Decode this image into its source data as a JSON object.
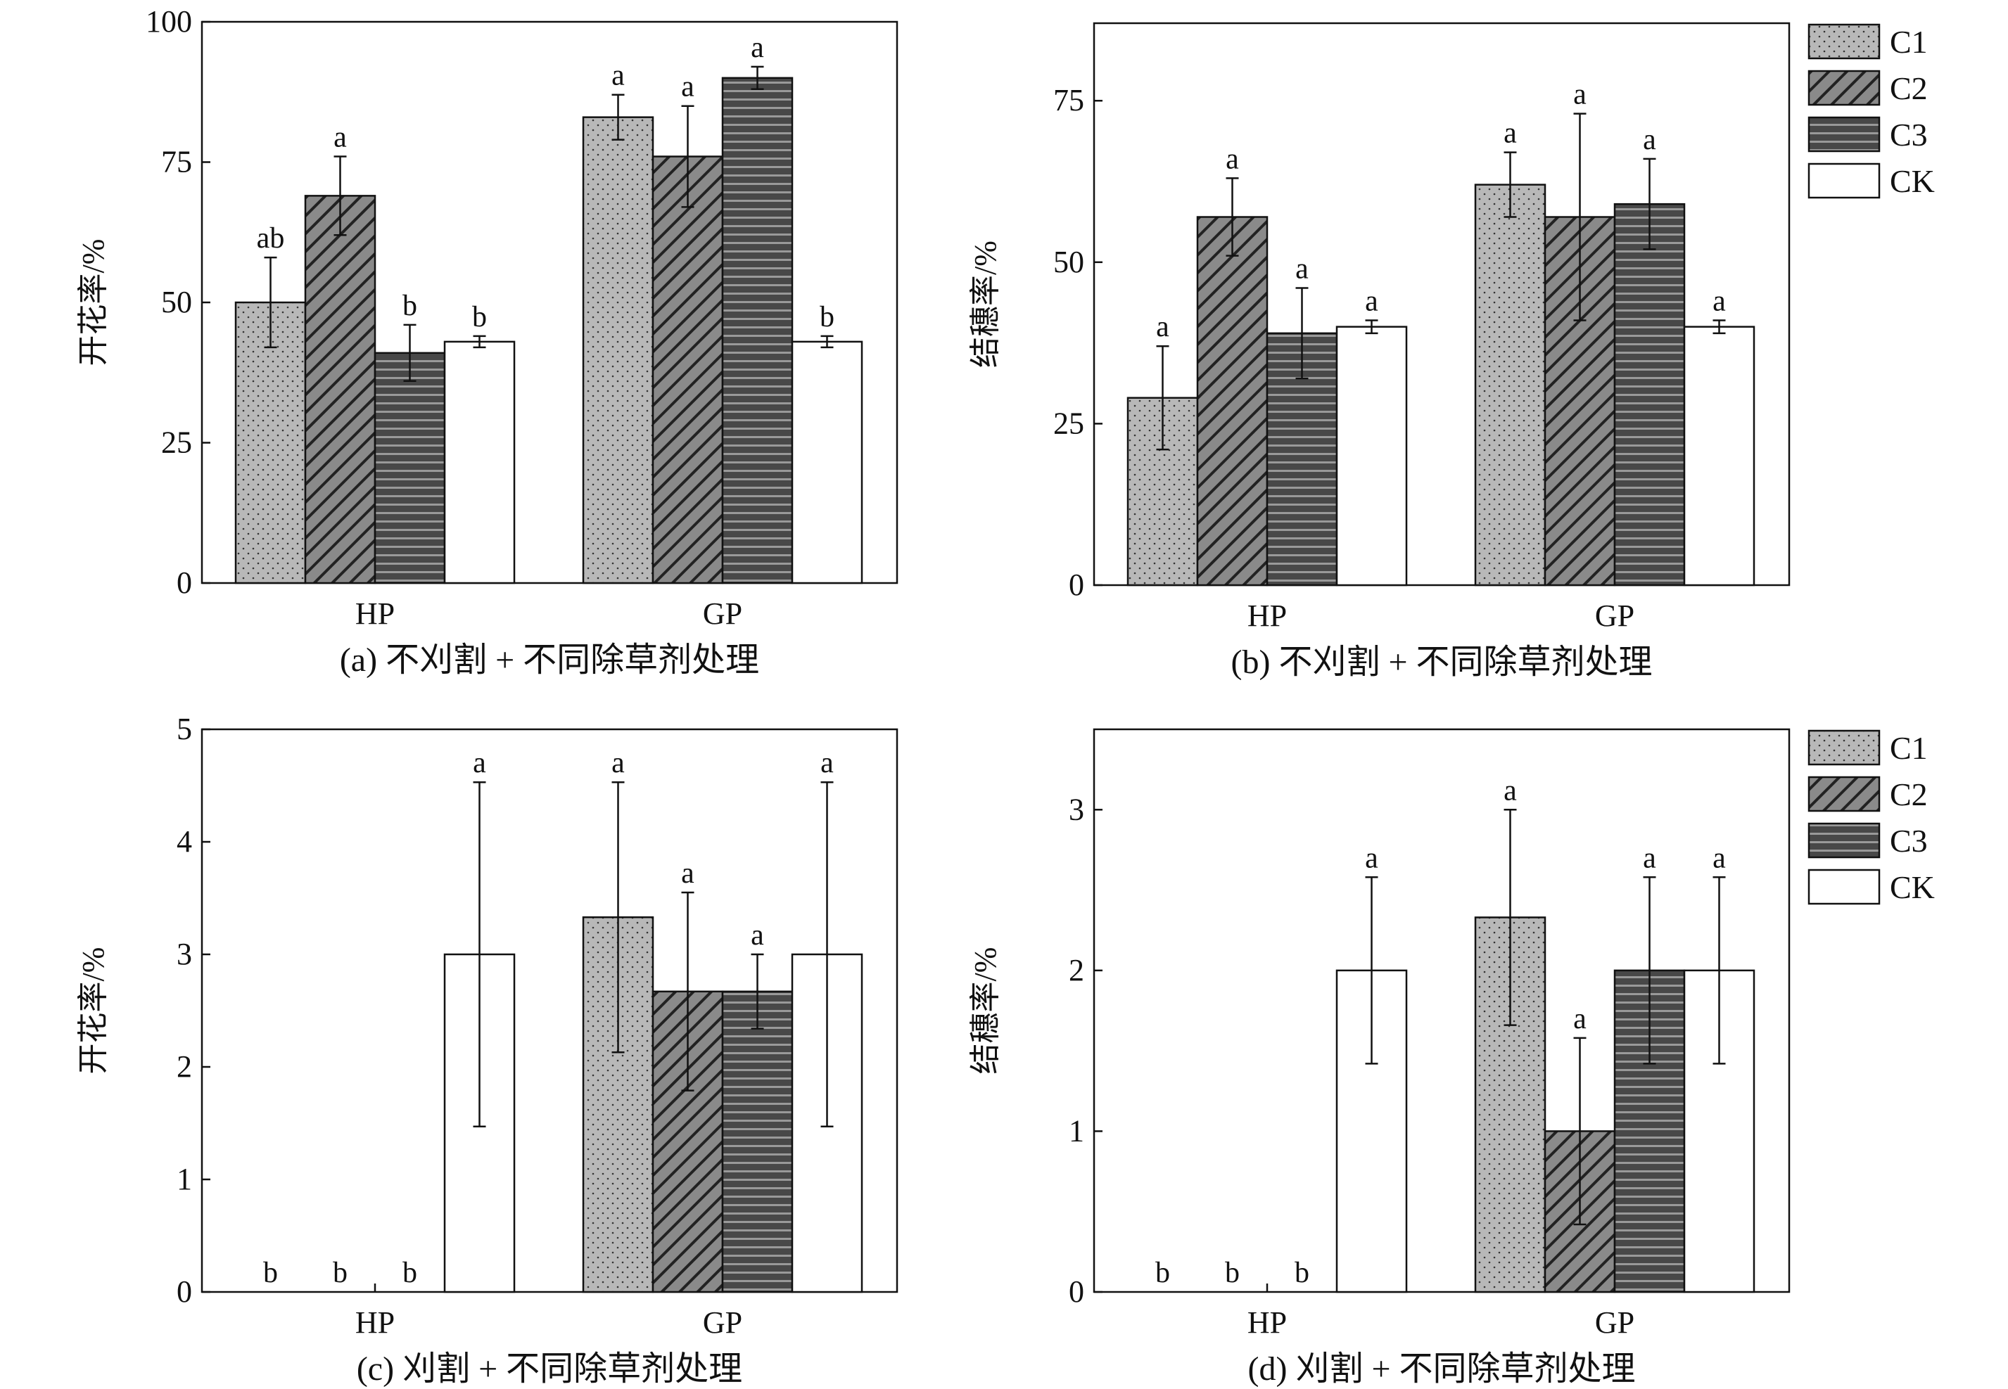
{
  "legend": [
    "C1",
    "C2",
    "C3",
    "CK"
  ],
  "colors": {
    "C1": "#b8b8b8",
    "C2": "#8a8a8a",
    "C3": "#484848",
    "CK": "#ffffff"
  },
  "chart_data": [
    {
      "type": "bar",
      "title": "(a) 不刈割 + 不同除草剂处理",
      "ylabel": "开花率/%",
      "xlabel": "",
      "categories": [
        "HP",
        "GP"
      ],
      "ylim": [
        0,
        100
      ],
      "yticks": [
        0,
        25,
        50,
        75,
        100
      ],
      "legend": false,
      "series": [
        {
          "name": "C1",
          "values": [
            50,
            83
          ],
          "errors": [
            8,
            4
          ],
          "letters": [
            "ab",
            "a"
          ]
        },
        {
          "name": "C2",
          "values": [
            69,
            76
          ],
          "errors": [
            7,
            9
          ],
          "letters": [
            "a",
            "a"
          ]
        },
        {
          "name": "C3",
          "values": [
            41,
            90
          ],
          "errors": [
            5,
            2
          ],
          "letters": [
            "b",
            "a"
          ]
        },
        {
          "name": "CK",
          "values": [
            43,
            43
          ],
          "errors": [
            1,
            1
          ],
          "letters": [
            "b",
            "b"
          ]
        }
      ]
    },
    {
      "type": "bar",
      "title": "(b) 不刈割 + 不同除草剂处理",
      "ylabel": "结穗率/%",
      "xlabel": "",
      "categories": [
        "HP",
        "GP"
      ],
      "ylim": [
        0,
        87
      ],
      "yticks": [
        0,
        25,
        50,
        75
      ],
      "legend": "right",
      "series": [
        {
          "name": "C1",
          "values": [
            29,
            62
          ],
          "errors": [
            8,
            5
          ],
          "letters": [
            "a",
            "a"
          ]
        },
        {
          "name": "C2",
          "values": [
            57,
            57
          ],
          "errors": [
            6,
            16
          ],
          "letters": [
            "a",
            "a"
          ]
        },
        {
          "name": "C3",
          "values": [
            39,
            59
          ],
          "errors": [
            7,
            7
          ],
          "letters": [
            "a",
            "a"
          ]
        },
        {
          "name": "CK",
          "values": [
            40,
            40
          ],
          "errors": [
            1,
            1
          ],
          "letters": [
            "a",
            "a"
          ]
        }
      ]
    },
    {
      "type": "bar",
      "title": "(c) 刈割 + 不同除草剂处理",
      "ylabel": "开花率/%",
      "xlabel": "",
      "categories": [
        "HP",
        "GP"
      ],
      "ylim": [
        0,
        5
      ],
      "yticks": [
        0,
        1,
        2,
        3,
        4,
        5
      ],
      "legend": false,
      "series": [
        {
          "name": "C1",
          "values": [
            0,
            3.33
          ],
          "errors": [
            0,
            1.2
          ],
          "letters": [
            "b",
            "a"
          ]
        },
        {
          "name": "C2",
          "values": [
            0,
            2.67
          ],
          "errors": [
            0,
            0.88
          ],
          "letters": [
            "b",
            "a"
          ]
        },
        {
          "name": "C3",
          "values": [
            0,
            2.67
          ],
          "errors": [
            0,
            0.33
          ],
          "letters": [
            "b",
            "a"
          ]
        },
        {
          "name": "CK",
          "values": [
            3,
            3
          ],
          "errors": [
            1.53,
            1.53
          ],
          "letters": [
            "a",
            "a"
          ]
        }
      ]
    },
    {
      "type": "bar",
      "title": "(d) 刈割 + 不同除草剂处理",
      "ylabel": "结穗率/%",
      "xlabel": "",
      "categories": [
        "HP",
        "GP"
      ],
      "ylim": [
        0,
        3.5
      ],
      "yticks": [
        0,
        1,
        2,
        3
      ],
      "legend": "right",
      "series": [
        {
          "name": "C1",
          "values": [
            0,
            2.33
          ],
          "errors": [
            0,
            0.67
          ],
          "letters": [
            "b",
            "a"
          ]
        },
        {
          "name": "C2",
          "values": [
            0,
            1
          ],
          "errors": [
            0,
            0.58
          ],
          "letters": [
            "b",
            "a"
          ]
        },
        {
          "name": "C3",
          "values": [
            0,
            2
          ],
          "errors": [
            0,
            0.58
          ],
          "letters": [
            "b",
            "a"
          ]
        },
        {
          "name": "CK",
          "values": [
            2,
            2
          ],
          "errors": [
            0.58,
            0.58
          ],
          "letters": [
            "a",
            "a"
          ]
        }
      ]
    }
  ]
}
